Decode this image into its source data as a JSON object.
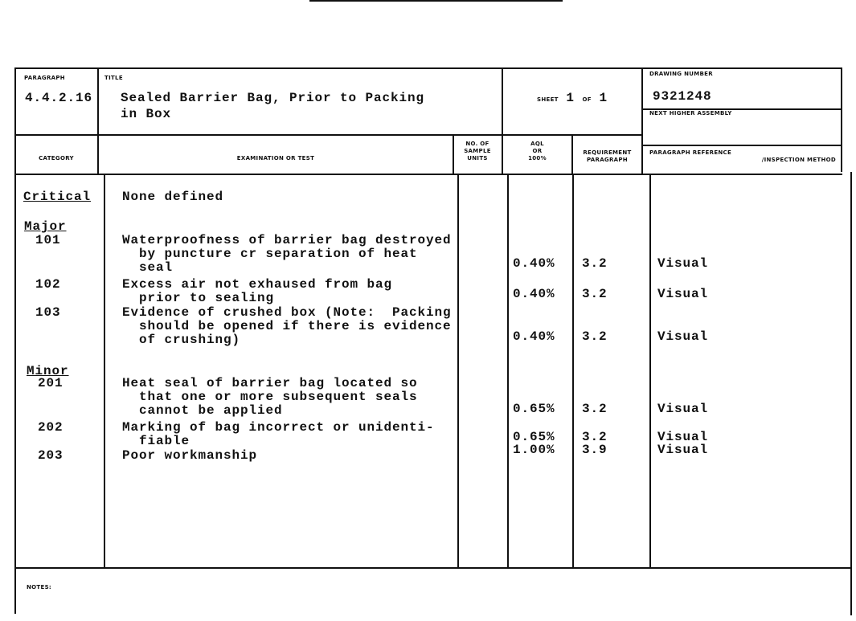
{
  "header": {
    "paragraph_label": "PARAGRAPH",
    "paragraph": "4.4.2.16",
    "title_label": "TITLE",
    "title_line1": "Sealed Barrier Bag, Prior to Packing",
    "title_line2": "in Box",
    "sheet_label": "SHEET",
    "sheet_number": "1",
    "sheet_of": "OF",
    "sheet_total": "1",
    "drawing_number_label": "DRAWING NUMBER",
    "drawing_number": "9321248",
    "next_higher_assembly_label": "NEXT HIGHER ASSEMBLY"
  },
  "columns": {
    "category": "CATEGORY",
    "examination": "EXAMINATION OR TEST",
    "sample_1": "NO. OF",
    "sample_2": "SAMPLE",
    "sample_3": "UNITS",
    "aql_1": "AQL",
    "aql_2": "OR",
    "aql_3": "100%",
    "req_1": "REQUIREMENT",
    "req_2": "PARAGRAPH",
    "ref_1": "PARAGRAPH REFERENCE",
    "ref_2": "/INSPECTION METHOD"
  },
  "categories": {
    "critical": "Critical",
    "critical_text": "None defined",
    "major": "Major",
    "minor": "Minor"
  },
  "rows": [
    {
      "id": "101",
      "lines": [
        "Waterproofness of barrier bag destroyed",
        "  by puncture cr separation of heat",
        "  seal"
      ],
      "aql": "0.40%",
      "req": "3.2",
      "method": "Visual"
    },
    {
      "id": "102",
      "lines": [
        "Excess air not exhaused from bag",
        "  prior to sealing"
      ],
      "aql": "0.40%",
      "req": "3.2",
      "method": "Visual"
    },
    {
      "id": "103",
      "lines": [
        "Evidence of crushed box (Note:  Packing",
        "  should be opened if there is evidence",
        "  of crushing)"
      ],
      "aql": "0.40%",
      "req": "3.2",
      "method": "Visual"
    },
    {
      "id": "201",
      "lines": [
        "Heat seal of barrier bag located so",
        "  that one or more subsequent seals",
        "  cannot be applied"
      ],
      "aql": "0.65%",
      "req": "3.2",
      "method": "Visual"
    },
    {
      "id": "202",
      "lines": [
        "Marking of bag incorrect or unidenti-",
        "  fiable"
      ],
      "aql": "0.65%",
      "req": "3.2",
      "method": "Visual"
    },
    {
      "id": "203",
      "lines": [
        "Poor workmanship"
      ],
      "aql": "1.00%",
      "req": "3.9",
      "method": "Visual"
    }
  ],
  "notes_label": "NOTES:"
}
